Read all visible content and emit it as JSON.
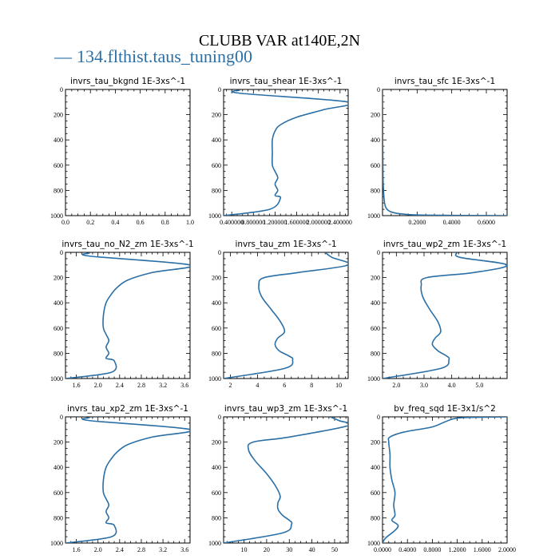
{
  "figure": {
    "title": "CLUBB VAR at140E,2N",
    "legend": {
      "marker": "—",
      "label": "134.flthist.taus_tuning00",
      "color": "#2a6fa6"
    }
  },
  "chart_data": [
    {
      "type": "line",
      "title": "invrs_tau_bkgnd   1E-3xs^-1",
      "xlim": [
        0,
        1
      ],
      "ylim": [
        1000,
        0
      ],
      "xticks": [
        0,
        0.2,
        0.4,
        0.6,
        0.8,
        1.0
      ],
      "xticklabels": [
        "0.0",
        "0.2",
        "0.4",
        "0.6",
        "0.8",
        "1.0"
      ],
      "yticks": [
        0,
        200,
        400,
        600,
        800,
        1000
      ],
      "yticklabels": [
        "0",
        "200",
        "400",
        "600",
        "800",
        "1000"
      ],
      "x": [],
      "y": []
    },
    {
      "type": "line",
      "title": "invrs_tau_shear   1E-3xs^-1",
      "xlim": [
        0.25,
        2.55
      ],
      "ylim": [
        1000,
        0
      ],
      "xticks": [
        0.4,
        0.8,
        1.2,
        1.6,
        2.0,
        2.4
      ],
      "xticklabels": [
        "0.400000",
        "0.800000",
        "1.200000",
        "1.600000",
        "2.000000",
        "2.400000"
      ],
      "yticks": [
        0,
        200,
        400,
        600,
        800,
        1000
      ],
      "yticklabels": [
        "0",
        "200",
        "400",
        "600",
        "800",
        "1000"
      ],
      "x": [
        0.55,
        0.55,
        2.55,
        2.1,
        1.6,
        1.3,
        1.2,
        1.15,
        1.15,
        1.15,
        1.2,
        1.25,
        1.2,
        1.25,
        1.2,
        1.3,
        1.1,
        0.25
      ],
      "y": [
        5,
        30,
        100,
        160,
        220,
        280,
        330,
        400,
        500,
        600,
        650,
        700,
        750,
        800,
        840,
        860,
        950,
        1000
      ]
    },
    {
      "type": "line",
      "title": "invrs_tau_sfc   1E-3xs^-1",
      "xlim": [
        0,
        0.72
      ],
      "ylim": [
        1000,
        0
      ],
      "xticks": [
        0.2,
        0.4,
        0.6
      ],
      "xticklabels": [
        "0.2000",
        "0.4000",
        "0.6000"
      ],
      "yticks": [
        0,
        200,
        400,
        600,
        800,
        1000
      ],
      "yticklabels": [
        "0",
        "200",
        "400",
        "600",
        "800",
        "1000"
      ],
      "x": [
        0.0,
        0.001,
        0.003,
        0.008,
        0.015,
        0.03,
        0.06,
        0.12,
        0.25,
        0.72
      ],
      "y": [
        0,
        400,
        700,
        850,
        920,
        955,
        975,
        988,
        996,
        1000
      ]
    },
    {
      "type": "line",
      "title": "invrs_tau_no_N2_zm   1E-3xs^-1",
      "xlim": [
        1.4,
        3.7
      ],
      "ylim": [
        1000,
        0
      ],
      "xticks": [
        1.6,
        2.0,
        2.4,
        2.8,
        3.2,
        3.6
      ],
      "xticklabels": [
        "1.6",
        "2.0",
        "2.4",
        "2.8",
        "3.2",
        "3.6"
      ],
      "yticks": [
        0,
        200,
        400,
        600,
        800,
        1000
      ],
      "yticklabels": [
        "0",
        "200",
        "400",
        "600",
        "800",
        "1000"
      ],
      "x": [
        1.85,
        1.85,
        3.7,
        3.0,
        2.55,
        2.35,
        2.25,
        2.15,
        2.1,
        2.1,
        2.15,
        2.2,
        2.15,
        2.2,
        2.15,
        2.3,
        2.25,
        1.4
      ],
      "y": [
        5,
        30,
        100,
        160,
        220,
        280,
        330,
        400,
        500,
        600,
        650,
        700,
        750,
        800,
        840,
        860,
        950,
        1000
      ]
    },
    {
      "type": "line",
      "title": "invrs_tau_zm   1E-3xs^-1",
      "xlim": [
        1.5,
        10.7
      ],
      "ylim": [
        1000,
        0
      ],
      "xticks": [
        2,
        4,
        6,
        8,
        10
      ],
      "xticklabels": [
        "2",
        "4",
        "6",
        "8",
        "10"
      ],
      "yticks": [
        0,
        200,
        400,
        600,
        800,
        1000
      ],
      "yticklabels": [
        "0",
        "200",
        "400",
        "600",
        "800",
        "1000"
      ],
      "x": [
        9.0,
        9.5,
        10.7,
        7.0,
        4.5,
        4.1,
        4.3,
        5.0,
        5.7,
        6.0,
        5.5,
        5.3,
        5.6,
        6.3,
        6.6,
        6.0,
        1.5
      ],
      "y": [
        0,
        40,
        100,
        160,
        200,
        260,
        350,
        450,
        550,
        630,
        680,
        730,
        780,
        820,
        850,
        920,
        1000
      ]
    },
    {
      "type": "line",
      "title": "invrs_tau_wp2_zm   1E-3xs^-1",
      "xlim": [
        1.5,
        6.0
      ],
      "ylim": [
        1000,
        0
      ],
      "xticks": [
        2.0,
        3.0,
        4.0,
        5.0
      ],
      "xticklabels": [
        "2.0",
        "3.0",
        "4.0",
        "5.0"
      ],
      "yticks": [
        0,
        200,
        400,
        600,
        800,
        1000
      ],
      "yticklabels": [
        "0",
        "200",
        "400",
        "600",
        "800",
        "1000"
      ],
      "x": [
        4.2,
        4.3,
        6.0,
        4.8,
        3.1,
        2.9,
        2.95,
        3.2,
        3.5,
        3.6,
        3.4,
        3.3,
        3.5,
        3.8,
        3.9,
        3.6,
        1.5
      ],
      "y": [
        0,
        40,
        100,
        160,
        200,
        260,
        350,
        450,
        550,
        630,
        680,
        730,
        780,
        820,
        850,
        920,
        1000
      ]
    },
    {
      "type": "line",
      "title": "invrs_tau_xp2_zm   1E-3xs^-1",
      "xlim": [
        1.4,
        3.7
      ],
      "ylim": [
        1000,
        0
      ],
      "xticks": [
        1.6,
        2.0,
        2.4,
        2.8,
        3.2,
        3.6
      ],
      "xticklabels": [
        "1.6",
        "2.0",
        "2.4",
        "2.8",
        "3.2",
        "3.6"
      ],
      "yticks": [
        0,
        200,
        400,
        600,
        800,
        1000
      ],
      "yticklabels": [
        "0",
        "200",
        "400",
        "600",
        "800",
        "1000"
      ],
      "x": [
        1.85,
        1.85,
        3.7,
        3.0,
        2.55,
        2.35,
        2.25,
        2.15,
        2.1,
        2.1,
        2.15,
        2.2,
        2.15,
        2.2,
        2.15,
        2.3,
        2.25,
        1.4
      ],
      "y": [
        5,
        30,
        100,
        160,
        220,
        280,
        330,
        400,
        500,
        600,
        650,
        700,
        750,
        800,
        840,
        860,
        950,
        1000
      ]
    },
    {
      "type": "line",
      "title": "invrs_tau_wp3_zm   1E-3xs^-1",
      "xlim": [
        1,
        56
      ],
      "ylim": [
        1000,
        0
      ],
      "xticks": [
        10,
        20,
        30,
        40,
        50
      ],
      "xticklabels": [
        "10",
        "20",
        "30",
        "40",
        "50"
      ],
      "yticks": [
        0,
        200,
        400,
        600,
        800,
        1000
      ],
      "yticklabels": [
        "0",
        "200",
        "400",
        "600",
        "800",
        "1000"
      ],
      "x": [
        48,
        52,
        56,
        30,
        14,
        12,
        15,
        20,
        24,
        26,
        25,
        25,
        27,
        30,
        31,
        27,
        1
      ],
      "y": [
        0,
        30,
        70,
        160,
        200,
        260,
        350,
        450,
        550,
        630,
        680,
        730,
        780,
        820,
        850,
        920,
        1000
      ]
    },
    {
      "type": "line",
      "title": "bv_freq_sqd   1E-3x1/s^2",
      "xlim": [
        0,
        2.0
      ],
      "ylim": [
        1000,
        0
      ],
      "xticks": [
        0,
        0.4,
        0.8,
        1.2,
        1.6,
        2.0
      ],
      "xticklabels": [
        "0.0000",
        "0.4000",
        "0.8000",
        "1.2000",
        "1.6000",
        "2.0000"
      ],
      "yticks": [
        0,
        200,
        400,
        600,
        800,
        1000
      ],
      "yticklabels": [
        "0",
        "200",
        "400",
        "600",
        "800",
        "1000"
      ],
      "x": [
        2.0,
        1.6,
        1.2,
        1.0,
        0.8,
        0.35,
        0.12,
        0.1,
        0.12,
        0.12,
        0.15,
        0.2,
        0.18,
        0.2,
        0.15,
        0.25,
        0.2,
        0.05,
        0.0
      ],
      "y": [
        0,
        3,
        10,
        40,
        80,
        120,
        160,
        200,
        300,
        400,
        500,
        600,
        700,
        780,
        820,
        860,
        900,
        960,
        1000
      ]
    }
  ]
}
